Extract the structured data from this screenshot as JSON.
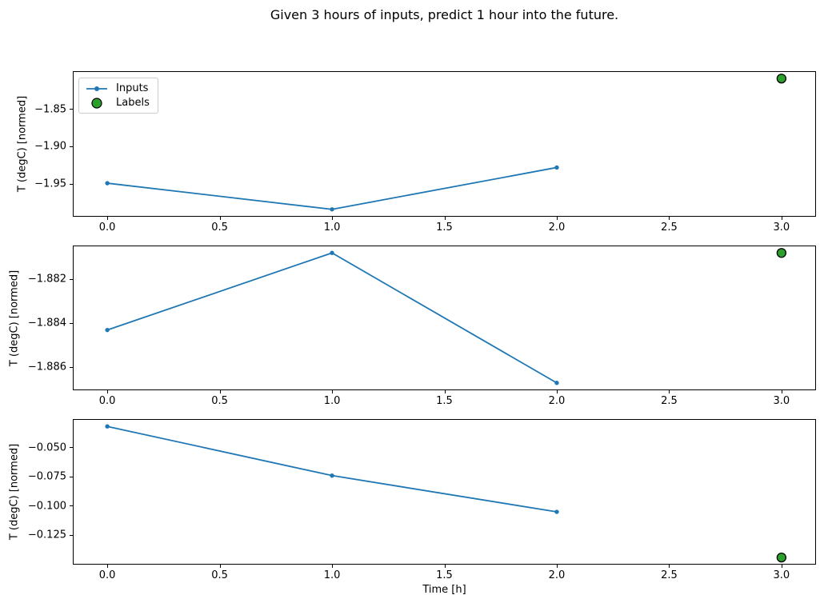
{
  "figure": {
    "title": "Given 3 hours of inputs, predict 1 hour into the future."
  },
  "legend": {
    "items": [
      {
        "label": "Inputs",
        "type": "line-with-marker",
        "color": "#1f77b4"
      },
      {
        "label": "Labels",
        "type": "filled-circle",
        "color": "#2ca02c",
        "edge": "#000000"
      }
    ]
  },
  "colors": {
    "inputs_line": "#1f77b4",
    "labels_fill": "#2ca02c",
    "labels_edge": "#000000",
    "axis": "#000000"
  },
  "chart_data": {
    "type": "line",
    "title": "Given 3 hours of inputs, predict 1 hour into the future.",
    "xlabel": "Time [h]",
    "xlim": [
      -0.15,
      3.15
    ],
    "grid": false,
    "legend_position": "upper left of first subplot",
    "xticks": [
      {
        "v": 0.0,
        "label": "0.0"
      },
      {
        "v": 0.5,
        "label": "0.5"
      },
      {
        "v": 1.0,
        "label": "1.0"
      },
      {
        "v": 1.5,
        "label": "1.5"
      },
      {
        "v": 2.0,
        "label": "2.0"
      },
      {
        "v": 2.5,
        "label": "2.5"
      },
      {
        "v": 3.0,
        "label": "3.0"
      }
    ],
    "subplots": [
      {
        "ylabel": "T (degC) [normed]",
        "series": [
          {
            "name": "Inputs",
            "x": [
              0.0,
              1.0,
              2.0
            ],
            "y": [
              -1.949,
              -1.984,
              -1.928
            ]
          },
          {
            "name": "Labels",
            "x": [
              3.0
            ],
            "y": [
              -1.809
            ]
          }
        ],
        "ylim": [
          -1.9928,
          -1.8002
        ],
        "yticks": [
          {
            "v": -1.85,
            "label": "−1.85"
          },
          {
            "v": -1.9,
            "label": "−1.90"
          },
          {
            "v": -1.95,
            "label": "−1.95"
          }
        ]
      },
      {
        "ylabel": "T (degC) [normed]",
        "series": [
          {
            "name": "Inputs",
            "x": [
              0.0,
              1.0,
              2.0
            ],
            "y": [
              -1.8843,
              -1.8808,
              -1.8867
            ]
          },
          {
            "name": "Labels",
            "x": [
              3.0
            ],
            "y": [
              -1.8808
            ]
          }
        ],
        "ylim": [
          -1.887,
          -1.8805
        ],
        "yticks": [
          {
            "v": -1.882,
            "label": "−1.882"
          },
          {
            "v": -1.884,
            "label": "−1.884"
          },
          {
            "v": -1.886,
            "label": "−1.886"
          }
        ]
      },
      {
        "ylabel": "T (degC) [normed]",
        "series": [
          {
            "name": "Inputs",
            "x": [
              0.0,
              1.0,
              2.0
            ],
            "y": [
              -0.032,
              -0.074,
              -0.105
            ]
          },
          {
            "name": "Labels",
            "x": [
              3.0
            ],
            "y": [
              -0.144
            ]
          }
        ],
        "ylim": [
          -0.1494,
          -0.0264
        ],
        "yticks": [
          {
            "v": -0.05,
            "label": "−0.050"
          },
          {
            "v": -0.075,
            "label": "−0.075"
          },
          {
            "v": -0.1,
            "label": "−0.100"
          },
          {
            "v": -0.125,
            "label": "−0.125"
          }
        ]
      }
    ]
  }
}
